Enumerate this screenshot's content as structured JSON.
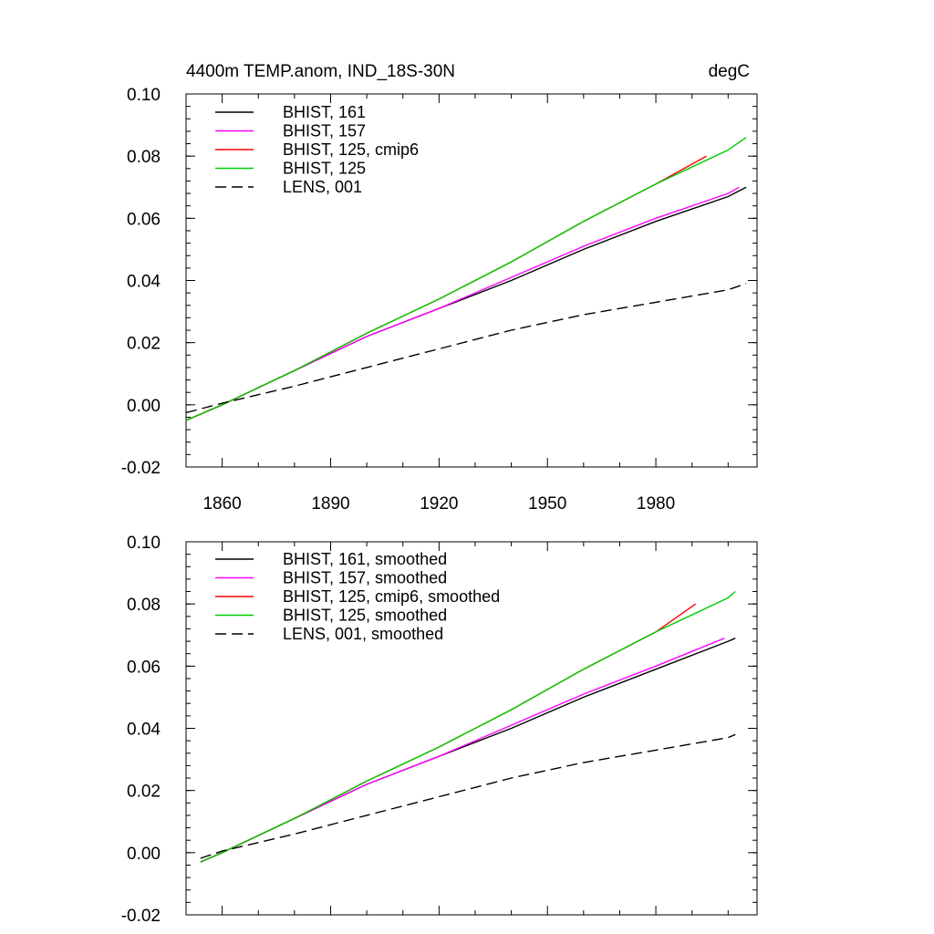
{
  "chart_data": [
    {
      "type": "line",
      "title": "4400m TEMP.anom, IND_18S-30N",
      "units_label": "degC",
      "xlim": [
        1850,
        2008
      ],
      "ylim": [
        -0.02,
        0.1
      ],
      "yticks": [
        "-0.02",
        "0.00",
        "0.02",
        "0.04",
        "0.06",
        "0.08",
        "0.10"
      ],
      "xticks": [
        "1860",
        "1890",
        "1920",
        "1950",
        "1980"
      ],
      "series": [
        {
          "name": "BHIST, 161",
          "color": "#000000",
          "dash": "solid",
          "x": [
            1850,
            1860,
            1880,
            1900,
            1920,
            1940,
            1960,
            1980,
            2000,
            2005
          ],
          "y": [
            -0.005,
            0.0,
            0.011,
            0.022,
            0.031,
            0.04,
            0.05,
            0.059,
            0.067,
            0.07
          ]
        },
        {
          "name": "BHIST, 157",
          "color": "#ff00ff",
          "dash": "solid",
          "x": [
            1850,
            1860,
            1880,
            1900,
            1920,
            1940,
            1960,
            1980,
            2000,
            2003
          ],
          "y": [
            -0.005,
            0.0,
            0.011,
            0.022,
            0.031,
            0.041,
            0.051,
            0.06,
            0.068,
            0.07
          ]
        },
        {
          "name": "BHIST, 125, cmip6",
          "color": "#ff0000",
          "dash": "solid",
          "x": [
            1850,
            1860,
            1880,
            1900,
            1920,
            1940,
            1960,
            1980,
            1994
          ],
          "y": [
            -0.005,
            0.0,
            0.011,
            0.023,
            0.034,
            0.046,
            0.059,
            0.071,
            0.08
          ]
        },
        {
          "name": "BHIST, 125",
          "color": "#00cc00",
          "dash": "solid",
          "x": [
            1850,
            1860,
            1880,
            1900,
            1920,
            1940,
            1960,
            1980,
            2000,
            2005
          ],
          "y": [
            -0.005,
            0.0,
            0.011,
            0.023,
            0.034,
            0.046,
            0.059,
            0.071,
            0.082,
            0.086
          ]
        },
        {
          "name": "LENS, 001",
          "color": "#000000",
          "dash": "dashed",
          "x": [
            1850,
            1860,
            1880,
            1900,
            1920,
            1940,
            1960,
            1980,
            2000,
            2005
          ],
          "y": [
            -0.0025,
            0.0005,
            0.006,
            0.012,
            0.018,
            0.024,
            0.029,
            0.033,
            0.037,
            0.039
          ]
        }
      ]
    },
    {
      "type": "line",
      "title": "",
      "xlim": [
        1850,
        2008
      ],
      "ylim": [
        -0.02,
        0.1
      ],
      "yticks": [
        "-0.02",
        "0.00",
        "0.02",
        "0.04",
        "0.06",
        "0.08",
        "0.10"
      ],
      "xticks": [],
      "series": [
        {
          "name": "BHIST, 161, smoothed",
          "color": "#000000",
          "dash": "solid",
          "x": [
            1854,
            1860,
            1880,
            1900,
            1920,
            1940,
            1960,
            1980,
            2000,
            2002
          ],
          "y": [
            -0.003,
            0.0,
            0.011,
            0.022,
            0.031,
            0.04,
            0.05,
            0.059,
            0.068,
            0.069
          ]
        },
        {
          "name": "BHIST, 157, smoothed",
          "color": "#ff00ff",
          "dash": "solid",
          "x": [
            1854,
            1860,
            1880,
            1900,
            1920,
            1940,
            1960,
            1980,
            1999
          ],
          "y": [
            -0.003,
            0.0,
            0.011,
            0.022,
            0.031,
            0.041,
            0.051,
            0.06,
            0.069
          ]
        },
        {
          "name": "BHIST, 125, cmip6, smoothed",
          "color": "#ff0000",
          "dash": "solid",
          "x": [
            1854,
            1860,
            1880,
            1900,
            1920,
            1940,
            1960,
            1980,
            1991
          ],
          "y": [
            -0.003,
            0.0,
            0.011,
            0.023,
            0.034,
            0.046,
            0.059,
            0.071,
            0.08
          ]
        },
        {
          "name": "BHIST, 125, smoothed",
          "color": "#00cc00",
          "dash": "solid",
          "x": [
            1854,
            1860,
            1880,
            1900,
            1920,
            1940,
            1960,
            1980,
            2000,
            2002
          ],
          "y": [
            -0.003,
            0.0,
            0.011,
            0.023,
            0.034,
            0.046,
            0.059,
            0.071,
            0.082,
            0.084
          ]
        },
        {
          "name": "LENS, 001, smoothed",
          "color": "#000000",
          "dash": "dashed",
          "x": [
            1854,
            1860,
            1880,
            1900,
            1920,
            1940,
            1960,
            1980,
            2000,
            2002
          ],
          "y": [
            -0.0018,
            0.0005,
            0.006,
            0.012,
            0.018,
            0.024,
            0.029,
            0.033,
            0.037,
            0.038
          ]
        }
      ]
    }
  ]
}
